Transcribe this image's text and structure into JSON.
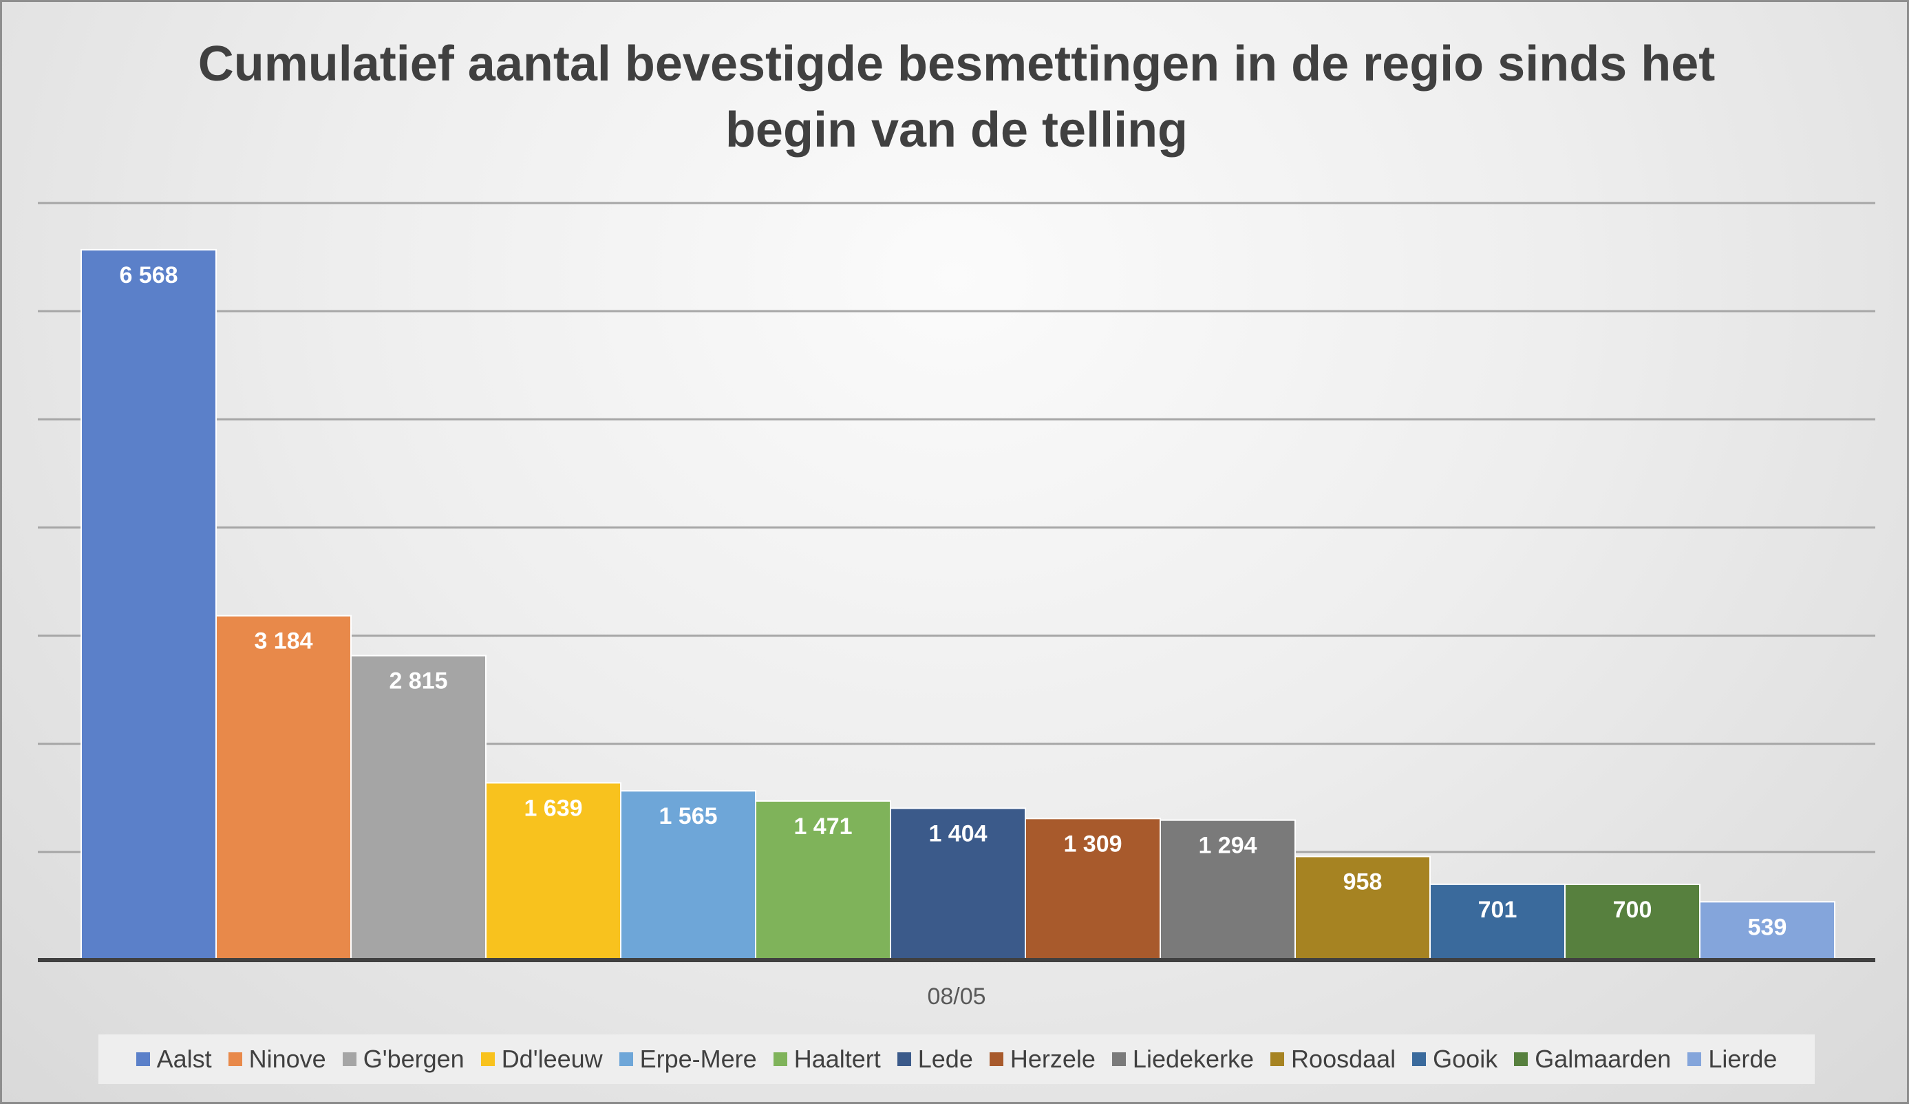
{
  "chart_data": {
    "type": "bar",
    "title": "Cumulatief aantal bevestigde besmettingen in de regio sinds het begin van de telling",
    "categories": [
      "08/05"
    ],
    "series": [
      {
        "name": "Aalst",
        "values": [
          6568
        ],
        "label": "6 568",
        "color": "#5b80c9"
      },
      {
        "name": "Ninove",
        "values": [
          3184
        ],
        "label": "3 184",
        "color": "#e8894a"
      },
      {
        "name": "G'bergen",
        "values": [
          2815
        ],
        "label": "2 815",
        "color": "#a5a5a5"
      },
      {
        "name": "Dd'leeuw",
        "values": [
          1639
        ],
        "label": "1 639",
        "color": "#f8c21e"
      },
      {
        "name": "Erpe-Mere",
        "values": [
          1565
        ],
        "label": "1 565",
        "color": "#6ea6d8"
      },
      {
        "name": "Haaltert",
        "values": [
          1471
        ],
        "label": "1 471",
        "color": "#7fb35a"
      },
      {
        "name": "Lede",
        "values": [
          1404
        ],
        "label": "1 404",
        "color": "#3b5a8a"
      },
      {
        "name": "Herzele",
        "values": [
          1309
        ],
        "label": "1 309",
        "color": "#a85a2c"
      },
      {
        "name": "Liedekerke",
        "values": [
          1294
        ],
        "label": "1 294",
        "color": "#7a7a7a"
      },
      {
        "name": "Roosdaal",
        "values": [
          958
        ],
        "label": "958",
        "color": "#a68322"
      },
      {
        "name": "Gooik",
        "values": [
          701
        ],
        "label": "701",
        "color": "#3a6a9c"
      },
      {
        "name": "Galmaarden",
        "values": [
          700
        ],
        "label": "700",
        "color": "#57803e"
      },
      {
        "name": "Lierde",
        "values": [
          539
        ],
        "label": "539",
        "color": "#84a5db"
      }
    ],
    "ylim": [
      0,
      7000
    ],
    "y_gridline_step": 1000,
    "y_tick_labels_shown": false,
    "grid": true,
    "legend_position": "bottom"
  }
}
